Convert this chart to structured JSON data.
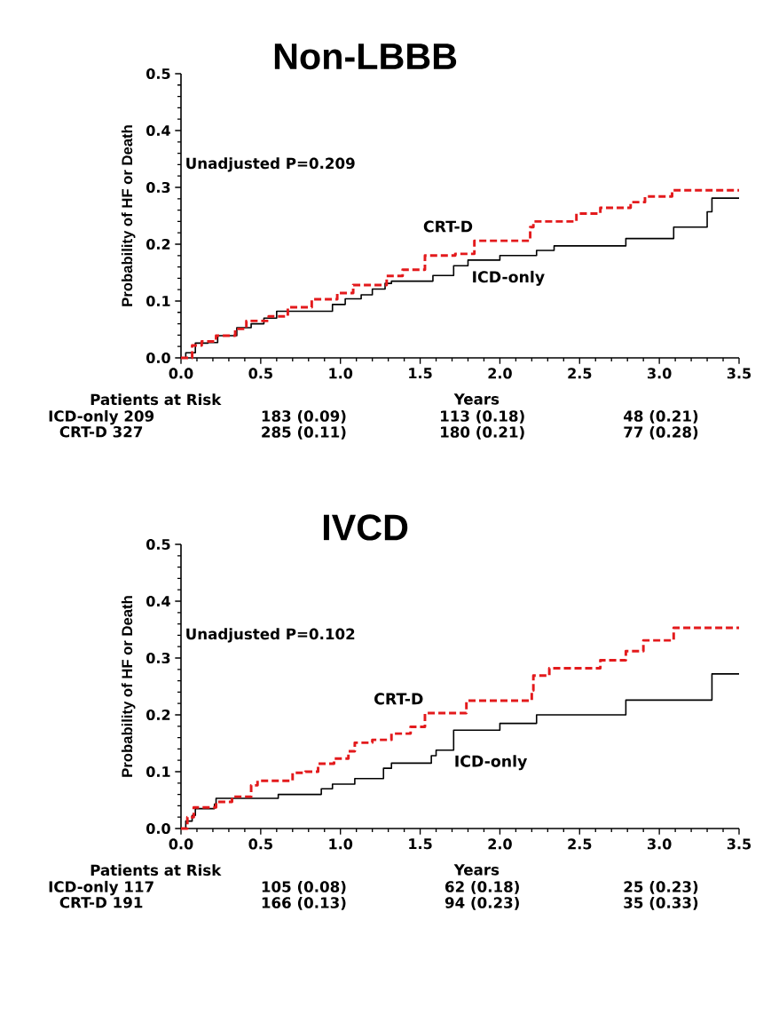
{
  "chart_data": [
    {
      "type": "step",
      "title": "Non-LBBB",
      "xlabel": "Years",
      "ylabel": "Probability of HF or Death",
      "xlim": [
        0,
        3.5
      ],
      "ylim": [
        0,
        0.5
      ],
      "xticks": [
        {
          "value": 0,
          "label": "0.0"
        },
        {
          "value": 0.5,
          "label": "0.5"
        },
        {
          "value": 1,
          "label": "1.0"
        },
        {
          "value": 1.5,
          "label": "1.5"
        },
        {
          "value": 2,
          "label": "2.0"
        },
        {
          "value": 2.5,
          "label": "2.5"
        },
        {
          "value": 3,
          "label": "3.0"
        },
        {
          "value": 3.5,
          "label": "3.5"
        }
      ],
      "yticks": [
        {
          "value": 0,
          "label": "0.0"
        },
        0.1,
        0.2,
        0.3,
        0.4,
        0.5
      ],
      "series": [
        {
          "name": "ICD-only",
          "color": "#000000",
          "line_style": "solid",
          "x": [
            0,
            0.03,
            0.09,
            0.17,
            0.23,
            0.35,
            0.44,
            0.52,
            0.6,
            0.88,
            0.95,
            1.03,
            1.13,
            1.2,
            1.28,
            1.32,
            1.58,
            1.71,
            1.8,
            2.0,
            2.23,
            2.34,
            2.79,
            3.09,
            3.3,
            3.33,
            3.5
          ],
          "values": [
            0,
            0.009,
            0.026,
            0.027,
            0.039,
            0.053,
            0.06,
            0.07,
            0.082,
            0.082,
            0.094,
            0.104,
            0.111,
            0.121,
            0.131,
            0.135,
            0.145,
            0.162,
            0.172,
            0.18,
            0.189,
            0.197,
            0.21,
            0.23,
            0.257,
            0.281,
            0.281
          ]
        },
        {
          "name": "CRT-D",
          "color": "#e31a1c",
          "line_style": "dashed",
          "x": [
            0,
            0.07,
            0.13,
            0.22,
            0.34,
            0.41,
            0.55,
            0.67,
            0.82,
            0.98,
            1.08,
            1.29,
            1.39,
            1.53,
            1.72,
            1.84,
            2.19,
            2.21,
            2.48,
            2.63,
            2.82,
            2.91,
            3.08,
            3.5
          ],
          "values": [
            0,
            0.022,
            0.029,
            0.039,
            0.051,
            0.065,
            0.073,
            0.089,
            0.103,
            0.114,
            0.128,
            0.144,
            0.155,
            0.18,
            0.183,
            0.206,
            0.23,
            0.24,
            0.254,
            0.264,
            0.274,
            0.284,
            0.295,
            0.295
          ]
        }
      ],
      "annotations": [
        "Unadjusted P=0.209",
        "Patients at Risk",
        "ICD-only 209",
        "183 (0.09)",
        "113 (0.18)",
        "48 (0.21)",
        "CRT-D 327",
        "285 (0.11)",
        "180 (0.21)",
        "77 (0.28)"
      ]
    },
    {
      "type": "step",
      "title": "IVCD",
      "xlabel": "Years",
      "ylabel": "Probability of HF or Death",
      "xlim": [
        0,
        3.5
      ],
      "ylim": [
        0,
        0.5
      ],
      "xticks": [
        {
          "value": 0,
          "label": "0.0"
        },
        {
          "value": 0.5,
          "label": "0.5"
        },
        {
          "value": 1,
          "label": "1.0"
        },
        {
          "value": 1.5,
          "label": "1.5"
        },
        {
          "value": 2,
          "label": "2.0"
        },
        {
          "value": 2.5,
          "label": "2.5"
        },
        {
          "value": 3,
          "label": "3.0"
        },
        {
          "value": 3.5,
          "label": "3.5"
        }
      ],
      "yticks": [
        {
          "value": 0,
          "label": "0.0"
        },
        0.1,
        0.2,
        0.3,
        0.4,
        0.5
      ],
      "series": [
        {
          "name": "ICD-only",
          "color": "#000000",
          "line_style": "solid",
          "x": [
            0,
            0.03,
            0.07,
            0.09,
            0.21,
            0.22,
            0.61,
            0.88,
            0.95,
            1.09,
            1.27,
            1.32,
            1.57,
            1.6,
            1.71,
            2.0,
            2.23,
            2.79,
            3.33,
            3.5
          ],
          "values": [
            0,
            0.013,
            0.023,
            0.035,
            0.043,
            0.053,
            0.06,
            0.07,
            0.078,
            0.088,
            0.106,
            0.115,
            0.128,
            0.138,
            0.173,
            0.185,
            0.2,
            0.226,
            0.272,
            0.272
          ]
        },
        {
          "name": "CRT-D",
          "color": "#e31a1c",
          "line_style": "dashed",
          "x": [
            0,
            0.04,
            0.08,
            0.17,
            0.22,
            0.32,
            0.44,
            0.48,
            0.61,
            0.7,
            0.78,
            0.86,
            0.96,
            1.05,
            1.09,
            1.2,
            1.32,
            1.44,
            1.53,
            1.79,
            2.2,
            2.21,
            2.31,
            2.63,
            2.79,
            2.9,
            3.09,
            3.5
          ],
          "values": [
            0,
            0.02,
            0.037,
            0.037,
            0.047,
            0.056,
            0.076,
            0.084,
            0.084,
            0.098,
            0.1,
            0.114,
            0.123,
            0.136,
            0.151,
            0.156,
            0.167,
            0.179,
            0.203,
            0.225,
            0.243,
            0.269,
            0.282,
            0.296,
            0.312,
            0.331,
            0.353,
            0.353
          ]
        }
      ],
      "annotations": [
        "Unadjusted P=0.102",
        "Patients at Risk",
        "ICD-only 117",
        "105 (0.08)",
        "62 (0.18)",
        "25 (0.23)",
        "CRT-D 191",
        "166 (0.13)",
        "94 (0.23)",
        "35 (0.33)"
      ]
    }
  ]
}
